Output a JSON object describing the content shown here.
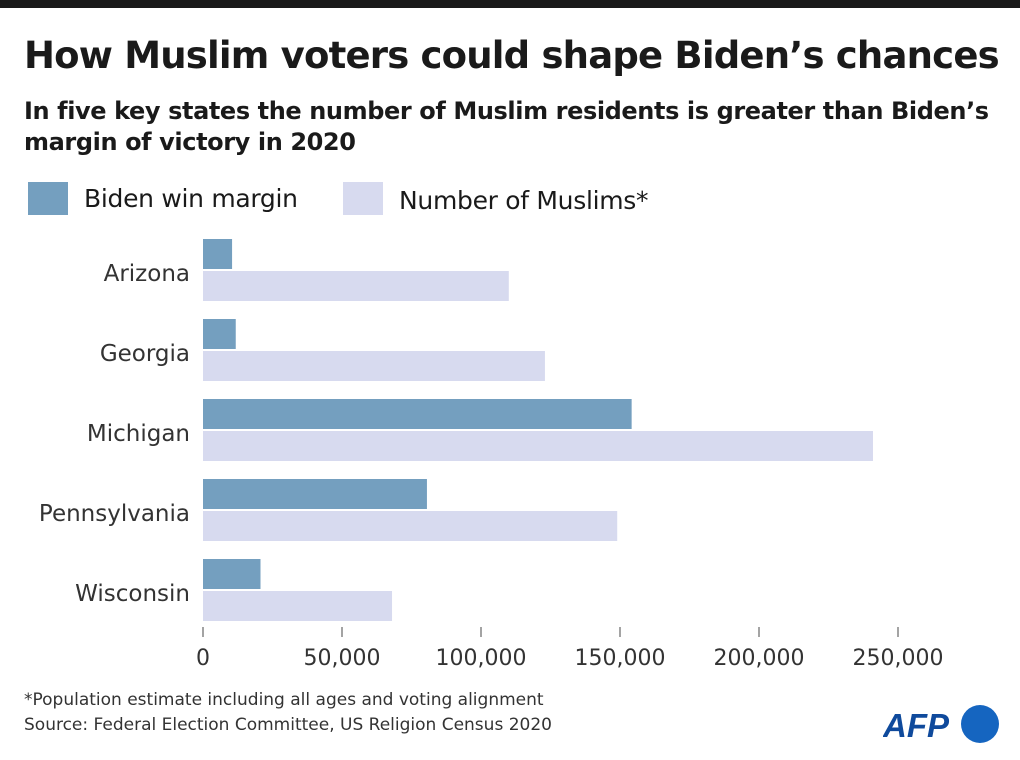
{
  "header": {
    "title": "How Muslim voters could shape Biden’s chances",
    "subtitle": "In five key states the number of Muslim residents is greater than Biden’s margin of victory in 2020"
  },
  "colors": {
    "margin_bar": "#749fbf",
    "muslims_bar": "#d7daef",
    "axis": "#666666",
    "text": "#1a1a1a"
  },
  "chart_data": {
    "type": "bar",
    "orientation": "horizontal",
    "categories": [
      "Arizona",
      "Georgia",
      "Michigan",
      "Pennsylvania",
      "Wisconsin"
    ],
    "series": [
      {
        "name": "Biden win margin",
        "color": "#749fbf",
        "values": [
          10457,
          11779,
          154188,
          80555,
          20682
        ]
      },
      {
        "name": "Number of Muslims*",
        "color": "#d7daef",
        "values": [
          110000,
          123000,
          241000,
          149000,
          68000
        ]
      }
    ],
    "xlim": [
      0,
      250000
    ],
    "x_ticks": [
      0,
      50000,
      100000,
      150000,
      200000,
      250000
    ],
    "x_tick_labels": [
      "0",
      "50,000",
      "100,000",
      "150,000",
      "200,000",
      "250,000"
    ],
    "title": "How Muslim voters could shape Biden’s chances",
    "xlabel": "",
    "ylabel": "",
    "grid": false,
    "legend_position": "top-left"
  },
  "footer": {
    "note": "*Population estimate including all ages and voting alignment",
    "source": "Source: Federal Election Committee, US Religion Census 2020",
    "logo_text": "AFP"
  }
}
